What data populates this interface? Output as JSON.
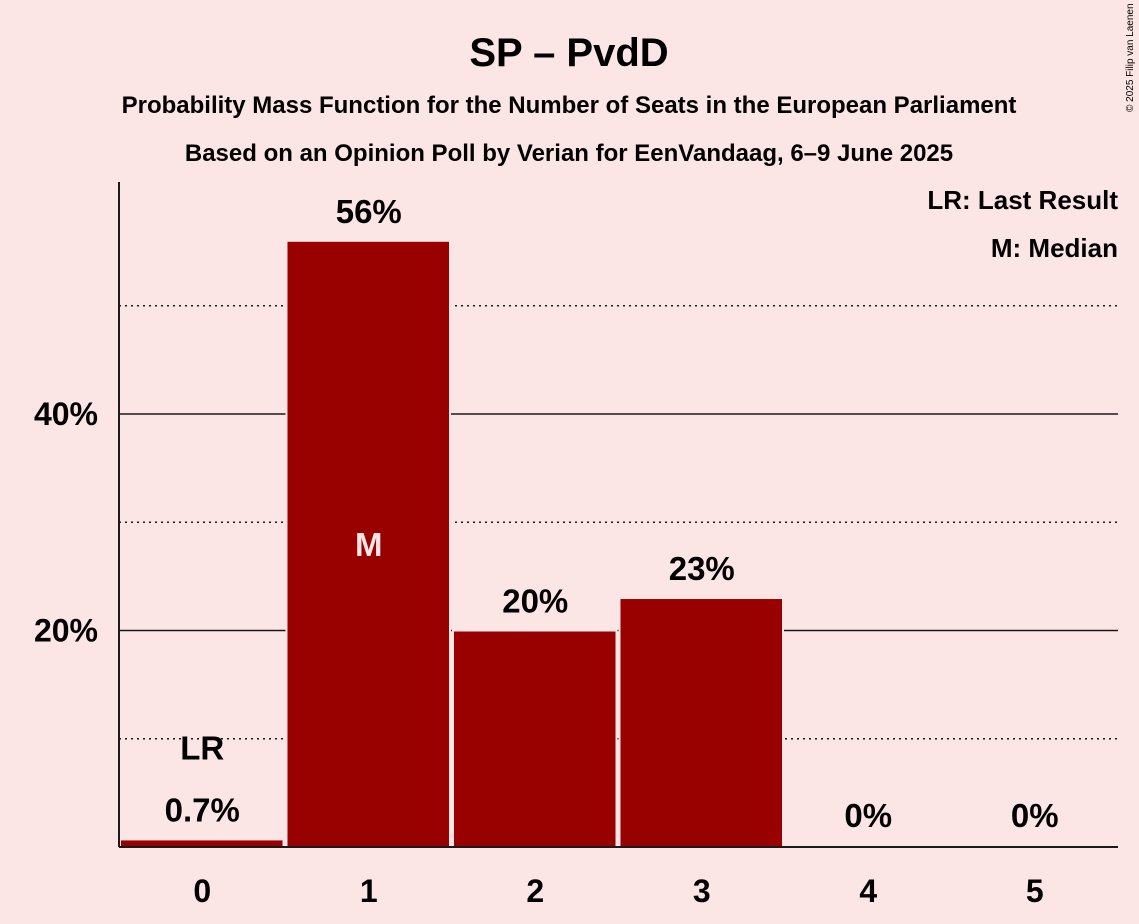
{
  "chart_data": {
    "type": "bar",
    "title": "SP – PvdD",
    "subtitle_lines": [
      "Probability Mass Function for the Number of Seats in the European Parliament",
      "Based on an Opinion Poll by Verian for EenVandaag, 6–9 June 2025"
    ],
    "copyright": "© 2025 Filip van Laenen",
    "categories": [
      "0",
      "1",
      "2",
      "3",
      "4",
      "5"
    ],
    "values": [
      0.7,
      56,
      20,
      23,
      0,
      0
    ],
    "data_labels": [
      "0.7%",
      "56%",
      "20%",
      "23%",
      "0%",
      "0%"
    ],
    "last_result_index": 0,
    "last_result_label": "LR",
    "median_index": 1,
    "median_label": "M",
    "ylim": [
      0,
      61
    ],
    "yticks": [
      20,
      40
    ],
    "ytick_labels": [
      "20%",
      "40%"
    ],
    "minor_gridlines": [
      10,
      30,
      50
    ],
    "legend_position": "top-right",
    "legend": [
      "LR: Last Result",
      "M: Median"
    ],
    "bar_color": "#990000",
    "background_color": "#FCE5E5"
  }
}
